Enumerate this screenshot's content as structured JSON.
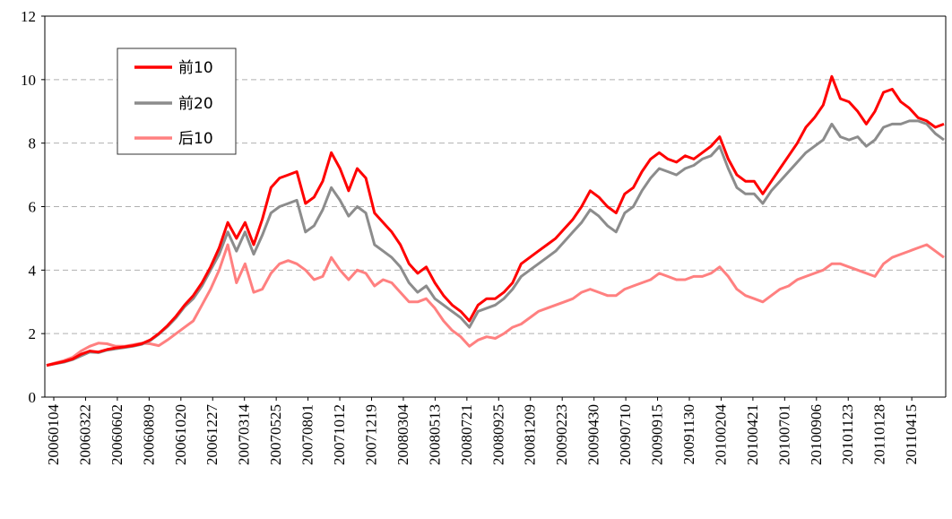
{
  "chart_data": {
    "type": "line",
    "title": "",
    "xlabel": "",
    "ylabel": "",
    "ylim": [
      0,
      12
    ],
    "yticks": [
      0,
      2,
      4,
      6,
      8,
      10,
      12
    ],
    "grid": "horizontal dashed",
    "legend_position": "top-left",
    "xticks": [
      "20060104",
      "20060322",
      "20060602",
      "20060809",
      "20061020",
      "20061227",
      "20070314",
      "20070525",
      "20070801",
      "20071012",
      "20071219",
      "20080304",
      "20080513",
      "20080721",
      "20080925",
      "20081209",
      "20090223",
      "20090430",
      "20090710",
      "20090915",
      "20091130",
      "20100204",
      "20100421",
      "20100701",
      "20100906",
      "20101123",
      "20110128",
      "20110415"
    ],
    "series": [
      {
        "name": "前10",
        "color": "#ff0000",
        "values": [
          1.0,
          1.06,
          1.12,
          1.2,
          1.35,
          1.45,
          1.42,
          1.5,
          1.55,
          1.58,
          1.62,
          1.68,
          1.8,
          2.0,
          2.25,
          2.55,
          2.9,
          3.2,
          3.6,
          4.1,
          4.7,
          5.5,
          5.0,
          5.5,
          4.8,
          5.6,
          6.6,
          6.9,
          7.0,
          7.1,
          6.1,
          6.3,
          6.8,
          7.7,
          7.2,
          6.5,
          7.2,
          6.9,
          5.8,
          5.5,
          5.2,
          4.8,
          4.2,
          3.9,
          4.1,
          3.6,
          3.2,
          2.9,
          2.7,
          2.4,
          2.9,
          3.1,
          3.1,
          3.3,
          3.6,
          4.2,
          4.4,
          4.6,
          4.8,
          5.0,
          5.3,
          5.6,
          6.0,
          6.5,
          6.3,
          6.0,
          5.8,
          6.4,
          6.6,
          7.1,
          7.5,
          7.7,
          7.5,
          7.4,
          7.6,
          7.5,
          7.7,
          7.9,
          8.2,
          7.5,
          7.0,
          6.8,
          6.8,
          6.4,
          6.8,
          7.2,
          7.6,
          8.0,
          8.5,
          8.8,
          9.2,
          10.1,
          9.4,
          9.3,
          9.0,
          8.6,
          9.0,
          9.6,
          9.7,
          9.3,
          9.1,
          8.8,
          8.7,
          8.5,
          8.6
        ]
      },
      {
        "name": "前20",
        "color": "#8c8c8c",
        "values": [
          1.0,
          1.05,
          1.1,
          1.18,
          1.3,
          1.42,
          1.4,
          1.48,
          1.52,
          1.56,
          1.6,
          1.66,
          1.78,
          1.98,
          2.22,
          2.5,
          2.85,
          3.1,
          3.5,
          4.0,
          4.5,
          5.2,
          4.6,
          5.2,
          4.5,
          5.1,
          5.8,
          6.0,
          6.1,
          6.2,
          5.2,
          5.4,
          5.9,
          6.6,
          6.2,
          5.7,
          6.0,
          5.8,
          4.8,
          4.6,
          4.4,
          4.1,
          3.6,
          3.3,
          3.5,
          3.1,
          2.9,
          2.7,
          2.5,
          2.2,
          2.7,
          2.8,
          2.9,
          3.1,
          3.4,
          3.8,
          4.0,
          4.2,
          4.4,
          4.6,
          4.9,
          5.2,
          5.5,
          5.9,
          5.7,
          5.4,
          5.2,
          5.8,
          6.0,
          6.5,
          6.9,
          7.2,
          7.1,
          7.0,
          7.2,
          7.3,
          7.5,
          7.6,
          7.9,
          7.2,
          6.6,
          6.4,
          6.4,
          6.1,
          6.5,
          6.8,
          7.1,
          7.4,
          7.7,
          7.9,
          8.1,
          8.6,
          8.2,
          8.1,
          8.2,
          7.9,
          8.1,
          8.5,
          8.6,
          8.6,
          8.7,
          8.7,
          8.6,
          8.3,
          8.1
        ]
      },
      {
        "name": "后10",
        "color": "#ff8080",
        "values": [
          1.0,
          1.08,
          1.15,
          1.25,
          1.45,
          1.6,
          1.7,
          1.68,
          1.6,
          1.6,
          1.65,
          1.7,
          1.68,
          1.62,
          1.8,
          2.0,
          2.2,
          2.4,
          2.9,
          3.4,
          4.0,
          4.8,
          3.6,
          4.2,
          3.3,
          3.4,
          3.9,
          4.2,
          4.3,
          4.2,
          4.0,
          3.7,
          3.8,
          4.4,
          4.0,
          3.7,
          4.0,
          3.9,
          3.5,
          3.7,
          3.6,
          3.3,
          3.0,
          3.0,
          3.1,
          2.8,
          2.4,
          2.1,
          1.9,
          1.6,
          1.8,
          1.9,
          1.85,
          2.0,
          2.2,
          2.3,
          2.5,
          2.7,
          2.8,
          2.9,
          3.0,
          3.1,
          3.3,
          3.4,
          3.3,
          3.2,
          3.2,
          3.4,
          3.5,
          3.6,
          3.7,
          3.9,
          3.8,
          3.7,
          3.7,
          3.8,
          3.8,
          3.9,
          4.1,
          3.8,
          3.4,
          3.2,
          3.1,
          3.0,
          3.2,
          3.4,
          3.5,
          3.7,
          3.8,
          3.9,
          4.0,
          4.2,
          4.2,
          4.1,
          4.0,
          3.9,
          3.8,
          4.2,
          4.4,
          4.5,
          4.6,
          4.7,
          4.8,
          4.6,
          4.4
        ]
      }
    ]
  }
}
